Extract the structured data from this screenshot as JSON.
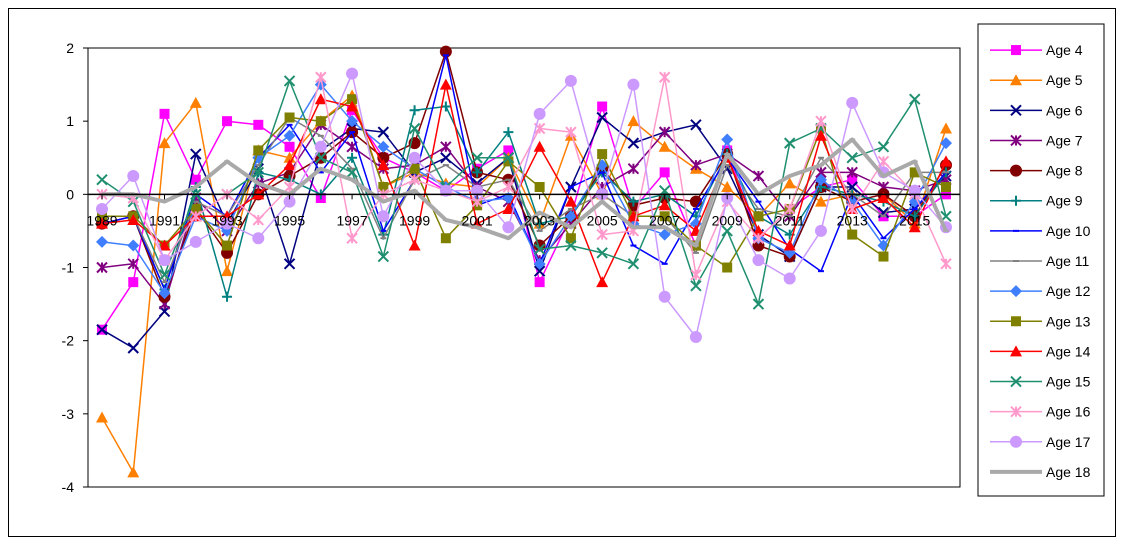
{
  "chart_data": {
    "type": "line",
    "title": "",
    "xlabel": "",
    "ylabel": "",
    "ylim": [
      -4,
      2
    ],
    "yticks": [
      2,
      1,
      0,
      -1,
      -2,
      -3,
      -4
    ],
    "x": [
      1989,
      1990,
      1991,
      1992,
      1993,
      1994,
      1995,
      1996,
      1997,
      1998,
      1999,
      2000,
      2001,
      2002,
      2003,
      2004,
      2005,
      2006,
      2007,
      2008,
      2009,
      2010,
      2011,
      2012,
      2013,
      2014,
      2015,
      2016
    ],
    "xtick_labels": [
      "1989",
      "1991",
      "1993",
      "1995",
      "1997",
      "1999",
      "2001",
      "2003",
      "2005",
      "2007",
      "2009",
      "2011",
      "2013",
      "2015"
    ],
    "grid": false,
    "legend_position": "right",
    "series": [
      {
        "name": "Age 4",
        "color": "#ff00ff",
        "marker": "square",
        "values": [
          -1.85,
          -1.2,
          1.1,
          0.2,
          1.0,
          0.95,
          0.65,
          -0.05,
          1.15,
          0.5,
          0.3,
          0.05,
          0.35,
          0.6,
          -1.2,
          -0.3,
          1.2,
          -0.2,
          0.3,
          -0.7,
          0.6,
          -0.6,
          -0.2,
          0.1,
          0.2,
          -0.3,
          -0.3,
          0.0
        ]
      },
      {
        "name": "Age 5",
        "color": "#ff7f00",
        "marker": "triangle",
        "values": [
          -3.05,
          -3.8,
          0.7,
          1.25,
          -1.05,
          0.6,
          0.5,
          1.0,
          1.35,
          0.1,
          0.3,
          0.15,
          0.1,
          0.5,
          -0.4,
          0.8,
          0.0,
          1.0,
          0.65,
          0.35,
          0.1,
          -0.3,
          0.15,
          -0.1,
          0.0,
          0.0,
          -0.4,
          0.9
        ]
      },
      {
        "name": "Age 6",
        "color": "#000080",
        "marker": "x",
        "values": [
          -1.85,
          -2.1,
          -1.6,
          0.55,
          -0.4,
          0.35,
          -0.95,
          0.6,
          0.9,
          0.85,
          0.3,
          0.5,
          0.15,
          0.5,
          -1.05,
          0.1,
          1.05,
          0.7,
          0.85,
          0.95,
          0.35,
          -0.55,
          -0.85,
          0.1,
          0.1,
          -0.25,
          -0.2,
          0.25
        ]
      },
      {
        "name": "Age 7",
        "color": "#800080",
        "marker": "star",
        "values": [
          -1.0,
          -0.95,
          -1.5,
          -0.05,
          -0.5,
          0.15,
          0.3,
          0.95,
          0.65,
          0.35,
          0.4,
          0.65,
          0.1,
          -0.1,
          -0.9,
          -0.4,
          0.1,
          0.35,
          0.85,
          0.4,
          0.55,
          0.25,
          -0.3,
          0.3,
          0.3,
          0.1,
          0.05,
          0.2
        ]
      },
      {
        "name": "Age 8",
        "color": "#800000",
        "marker": "circle",
        "values": [
          -0.4,
          -0.3,
          -1.4,
          -0.2,
          -0.8,
          0.0,
          0.25,
          0.5,
          0.85,
          0.5,
          0.7,
          1.95,
          0.3,
          0.2,
          -0.7,
          -0.3,
          0.35,
          -0.15,
          -0.05,
          -0.1,
          0.55,
          -0.7,
          -0.85,
          0.1,
          -0.1,
          0.0,
          -0.3,
          0.4
        ]
      },
      {
        "name": "Age 9",
        "color": "#008080",
        "marker": "plus",
        "values": [
          -0.3,
          -0.3,
          -1.3,
          0.1,
          -1.4,
          0.3,
          0.2,
          0.0,
          0.5,
          -0.55,
          1.15,
          1.2,
          0.3,
          0.85,
          -0.4,
          -0.3,
          0.3,
          -0.1,
          0.0,
          -0.3,
          0.55,
          -0.3,
          -0.55,
          0.1,
          0.0,
          -0.1,
          -0.3,
          0.3
        ]
      },
      {
        "name": "Age 10",
        "color": "#0000ff",
        "marker": "dash",
        "values": [
          -0.4,
          -0.3,
          -1.3,
          0.0,
          -0.3,
          0.5,
          0.95,
          0.3,
          0.85,
          -0.5,
          0.2,
          1.9,
          -0.15,
          0.0,
          -0.95,
          0.1,
          0.3,
          -0.7,
          -0.95,
          -0.2,
          0.5,
          -0.1,
          -0.75,
          -1.05,
          0.0,
          -0.6,
          -0.2,
          0.3
        ]
      },
      {
        "name": "Age 11",
        "color": "#808080",
        "marker": "dash",
        "values": [
          -0.3,
          -0.3,
          -1.2,
          -0.1,
          -0.3,
          0.4,
          1.05,
          0.8,
          0.35,
          -0.6,
          0.2,
          0.4,
          0.1,
          0.2,
          -0.5,
          -0.2,
          0.0,
          -0.3,
          -0.3,
          -0.8,
          0.4,
          -0.2,
          -0.3,
          0.5,
          0.0,
          -0.3,
          0.3,
          0.3
        ]
      },
      {
        "name": "Age 12",
        "color": "#3f7fff",
        "marker": "diamond",
        "values": [
          -0.65,
          -0.7,
          -1.35,
          -0.3,
          -0.5,
          0.5,
          0.8,
          1.5,
          1.0,
          0.65,
          0.35,
          0.1,
          -0.1,
          -0.05,
          -0.95,
          -0.3,
          0.4,
          -0.4,
          -0.55,
          -0.4,
          0.75,
          -0.6,
          -0.8,
          0.2,
          -0.1,
          -0.7,
          -0.1,
          0.7
        ]
      },
      {
        "name": "Age 13",
        "color": "#808000",
        "marker": "square",
        "values": [
          -0.3,
          -0.3,
          -0.7,
          -0.2,
          -0.7,
          0.6,
          1.05,
          1.0,
          1.3,
          0.1,
          0.35,
          -0.6,
          -0.15,
          0.45,
          0.1,
          -0.6,
          0.55,
          -0.3,
          -0.3,
          -0.7,
          -1.0,
          -0.3,
          -0.2,
          0.9,
          -0.55,
          -0.85,
          0.3,
          0.1
        ]
      },
      {
        "name": "Age 14",
        "color": "#ff0000",
        "marker": "triangle",
        "values": [
          -0.4,
          -0.35,
          -0.7,
          -0.3,
          -0.3,
          0.0,
          0.4,
          1.3,
          1.2,
          0.4,
          -0.7,
          1.5,
          -0.4,
          -0.2,
          0.65,
          -0.1,
          -1.2,
          -0.3,
          -0.15,
          -0.5,
          0.5,
          -0.5,
          -0.7,
          0.8,
          -0.2,
          -0.05,
          -0.45,
          0.45
        ]
      },
      {
        "name": "Age 15",
        "color": "#1f8f6f",
        "marker": "x",
        "values": [
          0.2,
          -0.1,
          -1.1,
          0.0,
          0.0,
          0.3,
          1.55,
          0.5,
          0.3,
          -0.85,
          0.9,
          0.1,
          0.5,
          0.5,
          -0.75,
          -0.7,
          -0.8,
          -0.95,
          0.05,
          -1.25,
          -0.5,
          -1.5,
          0.7,
          0.9,
          0.5,
          0.65,
          1.3,
          -0.3
        ]
      },
      {
        "name": "Age 16",
        "color": "#ff99cc",
        "marker": "star",
        "values": [
          0.0,
          -0.05,
          -0.9,
          -0.3,
          0.0,
          -0.35,
          0.1,
          1.6,
          -0.6,
          0.0,
          0.2,
          0.05,
          -0.1,
          0.1,
          0.9,
          0.85,
          -0.55,
          -0.5,
          1.6,
          -1.1,
          -0.1,
          -0.6,
          -0.2,
          1.0,
          -0.2,
          0.45,
          0.0,
          -0.95
        ]
      },
      {
        "name": "Age 17",
        "color": "#cc99ff",
        "marker": "circle",
        "values": [
          -0.2,
          0.25,
          -0.9,
          -0.65,
          -0.4,
          -0.6,
          -0.1,
          0.65,
          1.65,
          -0.3,
          0.5,
          0.05,
          0.05,
          -0.45,
          1.1,
          1.55,
          0.0,
          1.5,
          -1.4,
          -1.95,
          -0.05,
          -0.9,
          -1.15,
          -0.5,
          1.25,
          0.3,
          0.05,
          -0.45
        ]
      },
      {
        "name": "Age 18",
        "color": "#a9a9a9",
        "marker": "dash",
        "values": [
          0.0,
          0.0,
          -0.1,
          0.1,
          0.45,
          0.15,
          0.0,
          0.35,
          0.2,
          -0.1,
          0.05,
          -0.35,
          -0.45,
          -0.6,
          -0.25,
          -0.45,
          -0.1,
          -0.45,
          -0.45,
          -0.7,
          0.55,
          0.0,
          0.25,
          0.4,
          0.75,
          0.25,
          0.45,
          -0.5
        ]
      }
    ]
  }
}
